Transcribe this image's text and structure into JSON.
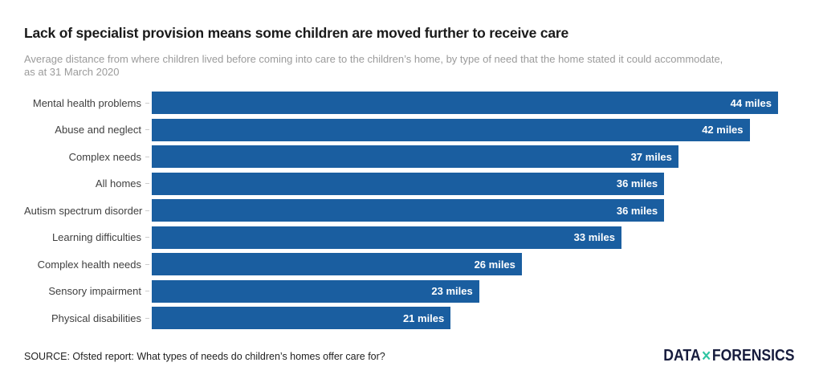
{
  "chart_data": {
    "type": "bar",
    "orientation": "horizontal",
    "title": "Lack of specialist provision means some children are moved further to receive care",
    "subtitle": "Average distance from where children lived before coming into care to the children’s home, by type of need that the home stated it could accommodate, as at 31 March 2020",
    "categories": [
      "Mental health problems",
      "Abuse and neglect",
      "Complex needs",
      "All homes",
      "Autism spectrum disorder",
      "Learning difficulties",
      "Complex health needs",
      "Sensory impairment",
      "Physical disabilities"
    ],
    "values": [
      44,
      42,
      37,
      36,
      36,
      33,
      26,
      23,
      21
    ],
    "unit": "miles",
    "value_labels": [
      "44 miles",
      "42 miles",
      "37 miles",
      "36 miles",
      "36 miles",
      "33 miles",
      "26 miles",
      "23 miles",
      "21 miles"
    ],
    "xlim": [
      0,
      44
    ],
    "grid": false,
    "legend": "none",
    "value_label_position": "inside-end"
  },
  "footer": {
    "source": "SOURCE: Ofsted report: What types of needs do children’s homes offer care for?",
    "logo": {
      "part1": "DATA",
      "separator": "✕",
      "part2": "FORENSICS"
    }
  },
  "colors": {
    "bar": "#1A5EA0",
    "title_text": "#1A1A1A",
    "subtitle_text": "#9B9B9B",
    "category_label": "#3F3F3F",
    "value_label": "#FFFFFF",
    "axis_tick": "#CCCCCC",
    "source_text": "#1F1F1F",
    "logo_navy": "#171C3D",
    "logo_x": "#2EC5A2",
    "background": "#FFFFFF"
  }
}
